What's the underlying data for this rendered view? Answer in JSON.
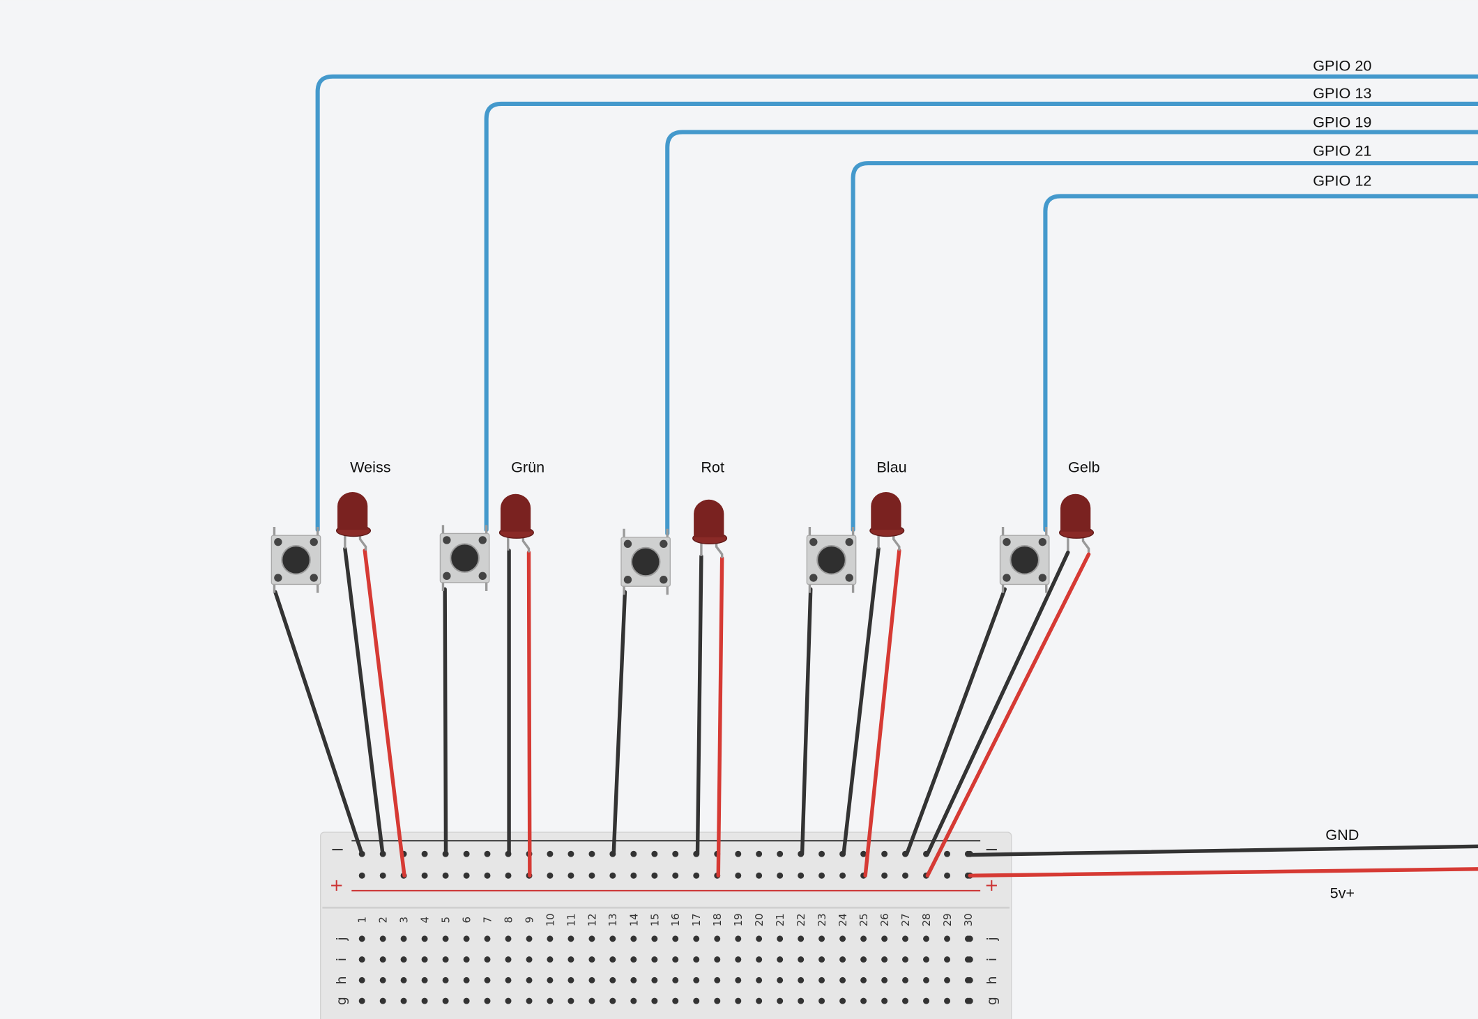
{
  "gpio_labels": [
    "GPIO 20",
    "GPIO 13",
    "GPIO 19",
    "GPIO 21",
    "GPIO 12"
  ],
  "led_labels": [
    "Weiss",
    "Grün",
    "Rot",
    "Blau",
    "Gelb"
  ],
  "power_labels": {
    "gnd": "GND",
    "vcc": "5v+"
  },
  "breadboard": {
    "rail_minus": "−",
    "rail_plus": "+",
    "column_numbers": [
      "1",
      "2",
      "3",
      "4",
      "5",
      "6",
      "7",
      "8",
      "9",
      "10",
      "11",
      "12",
      "13",
      "14",
      "15",
      "16",
      "17",
      "18",
      "19",
      "20",
      "21",
      "22",
      "23",
      "24",
      "25",
      "26",
      "27",
      "28",
      "29",
      "30"
    ],
    "row_letters": [
      "j",
      "i",
      "h",
      "g"
    ]
  },
  "colors": {
    "signal_wire": "#4499cc",
    "ground_wire": "#333333",
    "power_wire": "#d63a34",
    "led_body": "#7a2220",
    "button_body": "#cfd0d0"
  }
}
